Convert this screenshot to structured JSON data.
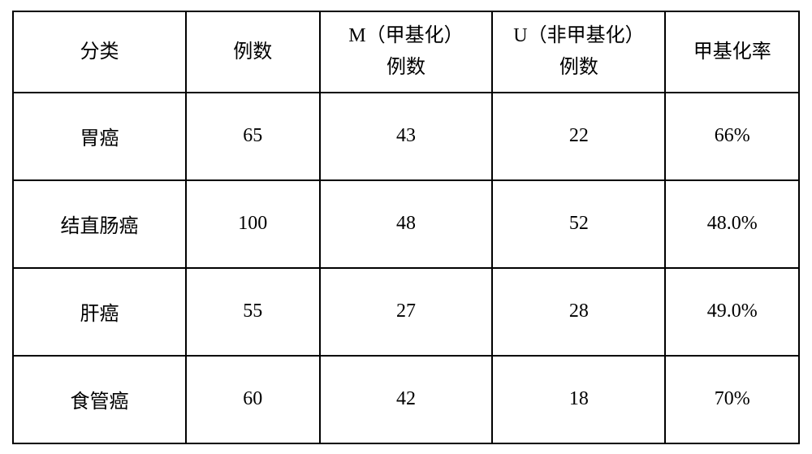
{
  "table": {
    "headers": {
      "category": "分类",
      "cases": "例数",
      "m_cases_line1": "M（甲基化）",
      "m_cases_line2": "例数",
      "u_cases_line1": "U（非甲基化）",
      "u_cases_line2": "例数",
      "rate": "甲基化率"
    },
    "rows": [
      {
        "category": "胃癌",
        "cases": "65",
        "m_cases": "43",
        "u_cases": "22",
        "rate": "66%"
      },
      {
        "category": "结直肠癌",
        "cases": "100",
        "m_cases": "48",
        "u_cases": "52",
        "rate": "48.0%"
      },
      {
        "category": "肝癌",
        "cases": "55",
        "m_cases": "27",
        "u_cases": "28",
        "rate": "49.0%"
      },
      {
        "category": "食管癌",
        "cases": "60",
        "m_cases": "42",
        "u_cases": "18",
        "rate": "70%"
      }
    ],
    "styling": {
      "border_color": "#000000",
      "border_width": 2,
      "background_color": "#ffffff",
      "text_color": "#000000",
      "font_family": "SimSun",
      "header_fontsize": 24,
      "cell_fontsize": 24,
      "header_row_height": 100,
      "data_row_height": 108,
      "column_widths_percent": [
        22,
        17,
        22,
        22,
        17
      ]
    }
  }
}
